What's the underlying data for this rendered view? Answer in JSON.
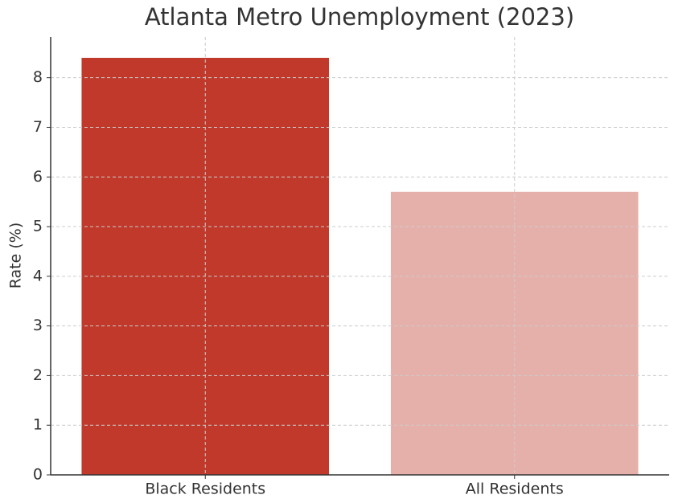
{
  "chart_data": {
    "type": "bar",
    "title": "Atlanta Metro Unemployment (2023)",
    "y_label": "Rate (%)",
    "categories": [
      "Black Residents",
      "All Residents"
    ],
    "values": [
      8.4,
      5.7
    ],
    "colors": [
      "#c0392b",
      "#e6b0aa"
    ],
    "ylim": [
      0,
      8.82
    ],
    "yticks": [
      0,
      1,
      2,
      3,
      4,
      5,
      6,
      7,
      8
    ],
    "grid": true
  }
}
